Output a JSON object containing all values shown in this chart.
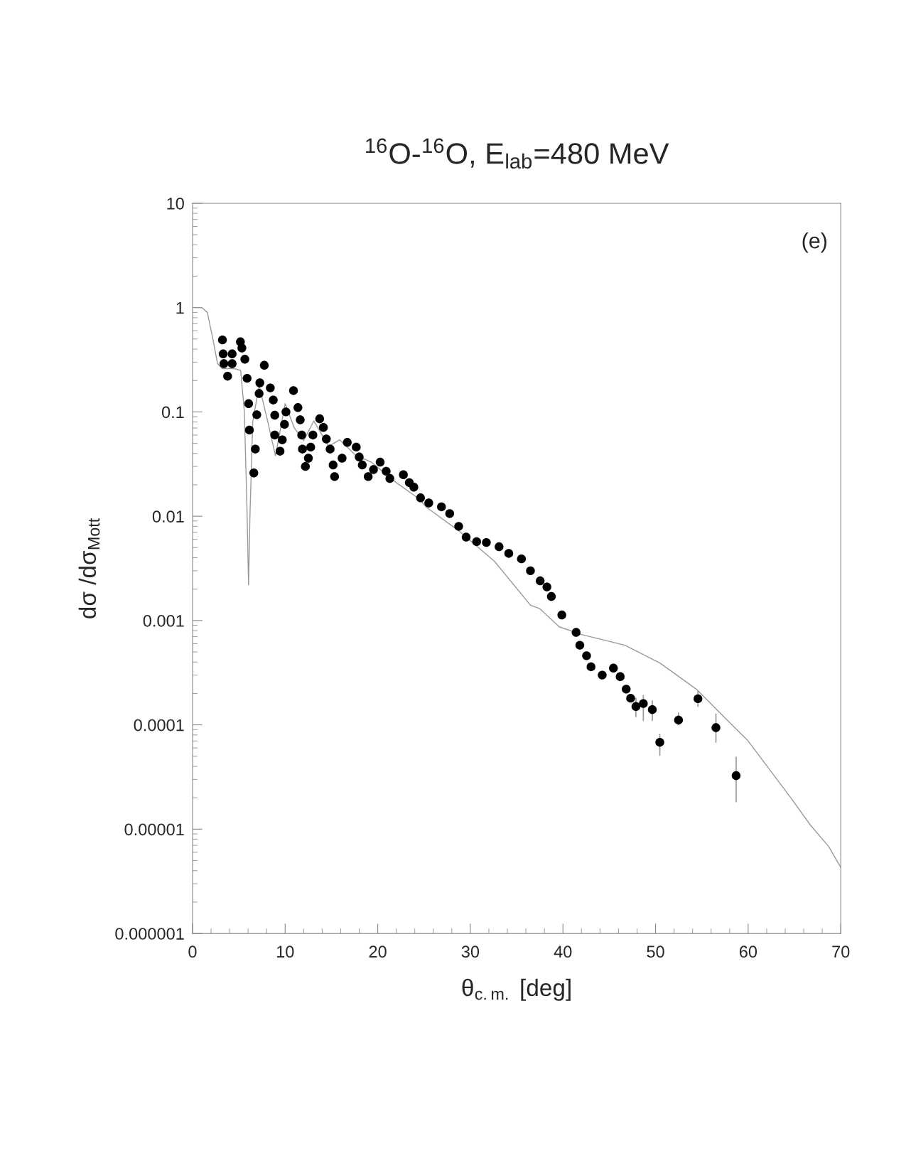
{
  "chart_data": {
    "type": "scatter",
    "title": "$^{16}$O-$^{16}$O, E$_{lab}$=480 MeV",
    "xlabel": "θ$_{c.m.}$ [deg]",
    "ylabel": "dσ /dσ$_{Mott}$",
    "annotations": [
      "(e)"
    ],
    "log": "y",
    "grid": false,
    "legend": false,
    "xlim": [
      0,
      70
    ],
    "xticks": [
      0,
      10,
      20,
      30,
      40,
      50,
      60,
      70
    ],
    "ylim": [
      1e-06,
      10
    ],
    "yticks": [
      10,
      1,
      0.1,
      0.01,
      0.001,
      {
        "value": 0.0001,
        "label": "0.0001"
      },
      {
        "value": 1e-05,
        "label": "0.00001"
      },
      {
        "value": 1e-06,
        "label": "0.000001"
      }
    ],
    "series": [
      {
        "color": "#000000",
        "marker": "circle",
        "x": [
          3.23,
          3.31,
          3.39,
          3.79,
          4.28,
          4.28,
          5.17,
          5.33,
          5.65,
          5.89,
          6.06,
          6.14,
          6.62,
          6.78,
          6.94,
          7.19,
          7.27,
          7.75,
          8.4,
          8.72,
          8.88,
          8.88,
          9.45,
          9.69,
          9.93,
          10.09,
          10.9,
          11.38,
          11.63,
          11.79,
          11.87,
          12.19,
          12.51,
          12.76,
          13.0,
          13.73,
          14.13,
          14.45,
          14.86,
          15.18,
          15.34,
          16.15,
          16.71,
          17.68,
          18.0,
          18.33,
          18.97,
          19.54,
          20.26,
          20.91,
          21.31,
          22.77,
          23.41,
          23.9,
          24.62,
          25.51,
          26.88,
          27.77,
          28.74,
          29.55,
          30.68,
          31.73,
          33.1,
          34.15,
          35.52,
          36.49,
          37.54,
          38.27,
          38.75,
          39.88,
          41.42,
          41.82,
          42.55,
          43.03,
          44.24,
          45.45,
          46.18,
          46.83,
          47.31,
          47.88,
          48.68,
          49.65,
          50.46,
          52.48,
          54.58,
          56.52,
          58.7
        ],
        "values": [
          0.49,
          0.36,
          0.29,
          0.22,
          0.36,
          0.29,
          0.47,
          0.41,
          0.32,
          0.21,
          0.12,
          0.067,
          0.026,
          0.044,
          0.094,
          0.15,
          0.19,
          0.28,
          0.17,
          0.13,
          0.093,
          0.06,
          0.042,
          0.054,
          0.076,
          0.1,
          0.16,
          0.11,
          0.084,
          0.06,
          0.044,
          0.03,
          0.036,
          0.046,
          0.06,
          0.086,
          0.071,
          0.055,
          0.044,
          0.031,
          0.024,
          0.036,
          0.051,
          0.046,
          0.037,
          0.031,
          0.024,
          0.028,
          0.033,
          0.027,
          0.023,
          0.025,
          0.021,
          0.019,
          0.015,
          0.0134,
          0.0123,
          0.0106,
          0.008,
          0.0063,
          0.0057,
          0.0056,
          0.0051,
          0.0044,
          0.0039,
          0.003,
          0.0024,
          0.0021,
          0.0017,
          0.00113,
          0.00077,
          0.00058,
          0.00046,
          0.00036,
          0.0003,
          0.00035,
          0.00029,
          0.00022,
          0.00018,
          0.00015,
          0.00016,
          0.00014,
          6.8e-05,
          0.000111,
          0.000178,
          9.4e-05,
          3.26e-05
        ],
        "errors": [
          null,
          null,
          null,
          null,
          null,
          null,
          null,
          null,
          null,
          null,
          null,
          null,
          null,
          null,
          null,
          null,
          null,
          null,
          null,
          null,
          null,
          null,
          null,
          null,
          null,
          null,
          null,
          null,
          null,
          null,
          null,
          null,
          null,
          null,
          null,
          null,
          null,
          null,
          null,
          null,
          null,
          null,
          null,
          null,
          null,
          null,
          null,
          null,
          null,
          null,
          null,
          null,
          null,
          null,
          null,
          null,
          null,
          null,
          null,
          null,
          null,
          null,
          null,
          null,
          null,
          null,
          null,
          null,
          null,
          null,
          null,
          null,
          null,
          null,
          null,
          null,
          null,
          null,
          null,
          [
            0.00012,
            0.00018
          ],
          [
            0.00011,
            0.00019
          ],
          [
            0.00011,
            0.00017
          ],
          [
            5.1e-05,
            8.1e-05
          ],
          [
            0.0001,
            0.00013
          ],
          [
            0.00015,
            0.00021
          ],
          [
            6.8e-05,
            0.000127
          ],
          [
            1.83e-05,
            4.9e-05
          ]
        ]
      },
      {
        "type": "line",
        "color": "#999999",
        "marker": "none",
        "line_style": "solid",
        "x": [
          0.3,
          1.0,
          1.6,
          2.2,
          2.7,
          3.2,
          4.5,
          5.2,
          5.6,
          5.9,
          6.05,
          6.2,
          6.5,
          7.19,
          8.0,
          8.96,
          10.0,
          11.0,
          12.0,
          13.1,
          14.7,
          15.9,
          17.8,
          18.7,
          19.3,
          22,
          24.5,
          25.2,
          28.8,
          32.6,
          36.5,
          37.5,
          39.6,
          42.1,
          46.7,
          50.5,
          54.4,
          60.0,
          64.6,
          66.7,
          68.7,
          70
        ],
        "values": [
          1.0,
          1.0,
          0.9,
          0.5,
          0.29,
          0.26,
          0.26,
          0.25,
          0.1,
          0.01,
          0.0022,
          0.01,
          0.08,
          0.18,
          0.09,
          0.038,
          0.12,
          0.07,
          0.053,
          0.082,
          0.047,
          0.054,
          0.037,
          0.035,
          0.033,
          0.021,
          0.0146,
          0.0123,
          0.0072,
          0.0037,
          0.0014,
          0.0013,
          0.00087,
          0.00073,
          0.00058,
          0.00039,
          0.00022,
          7e-05,
          2e-05,
          1.1e-05,
          6.8e-06,
          4.3e-06
        ]
      }
    ]
  }
}
